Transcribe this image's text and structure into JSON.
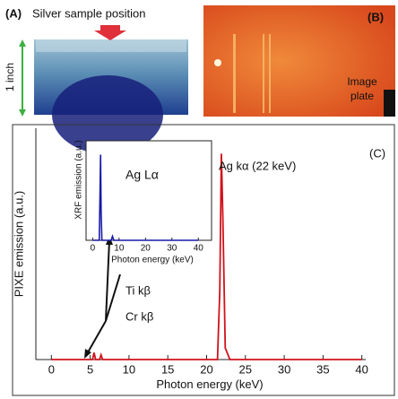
{
  "panels": {
    "A": {
      "label": "(A)",
      "caption": "Silver sample position",
      "scale": "1 inch"
    },
    "B": {
      "label": "(B)",
      "caption": [
        "Image",
        "plate"
      ]
    },
    "C": {
      "label": "(C)"
    }
  },
  "chart_data": [
    {
      "type": "line",
      "xlabel": "Photon energy (keV)",
      "ylabel": "PIXE emission (a.u.)",
      "annotations": [
        "Ag kα (22 keV)",
        "Ti kβ",
        "Cr kβ"
      ],
      "x": [
        0,
        4,
        5.3,
        5.5,
        5.7,
        6.0,
        6.2,
        6.4,
        6.6,
        7,
        21.4,
        21.7,
        21.9,
        22.1,
        22.4,
        23,
        40
      ],
      "series": [
        {
          "color": "#d0121b",
          "values": [
            0,
            0,
            0,
            0.03,
            0,
            0,
            0,
            0.02,
            0,
            0,
            0,
            0.3,
            0.89,
            0.6,
            0.05,
            0,
            0
          ]
        }
      ],
      "xlim": [
        -2,
        40.5
      ],
      "ylim": [
        0,
        1
      ],
      "xticks": [
        0,
        5,
        10,
        15,
        20,
        25,
        30,
        35,
        40
      ]
    },
    {
      "type": "line",
      "xlabel": "Photon energy (keV)",
      "ylabel": "XRF emission (a.u.)",
      "annotations": [
        "Ag Lα"
      ],
      "x": [
        0,
        2.5,
        2.8,
        3.0,
        3.2,
        3.5,
        7,
        7.5,
        8,
        40
      ],
      "series": [
        {
          "color": "#1a1aa8",
          "values": [
            0,
            0,
            0.5,
            0.86,
            0.3,
            0,
            0,
            0.04,
            0,
            0
          ]
        }
      ],
      "xlim": [
        -2.5,
        45
      ],
      "ylim": [
        0,
        1
      ],
      "xticks": [
        0,
        10,
        20,
        30,
        40
      ]
    }
  ]
}
